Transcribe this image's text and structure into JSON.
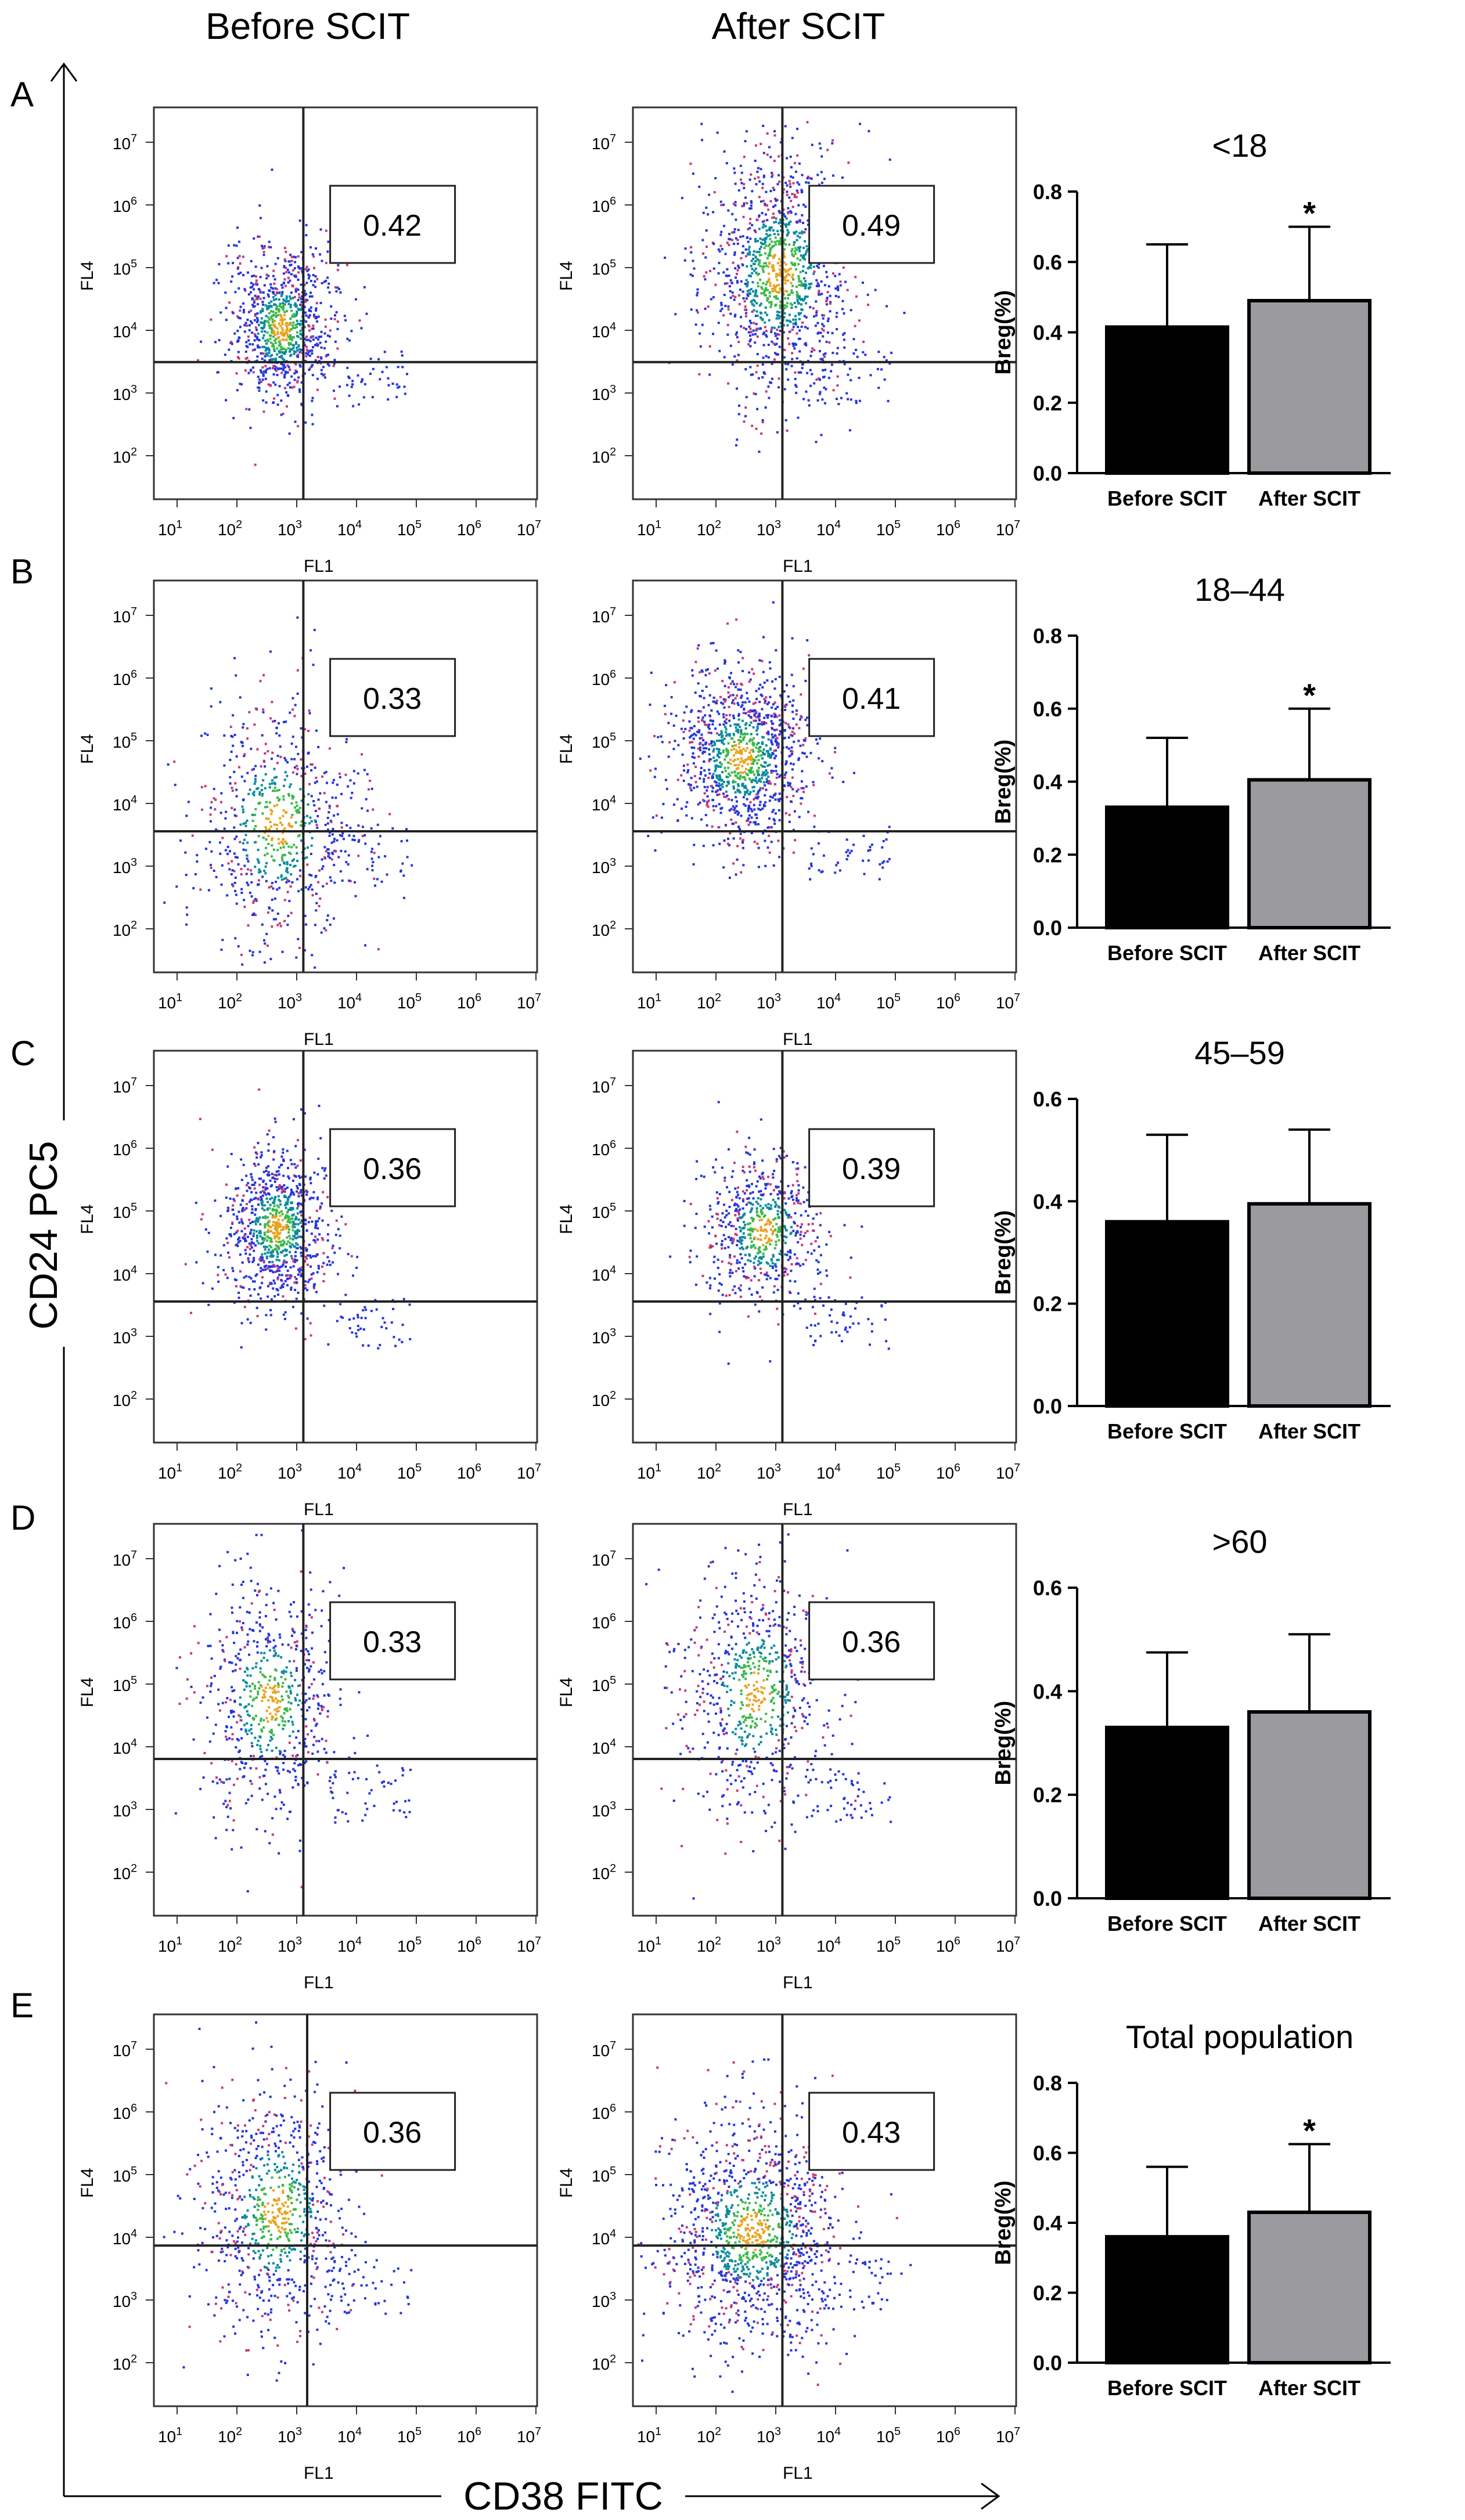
{
  "headers": {
    "before": "Before SCIT",
    "after": "After SCIT"
  },
  "axis_titles": {
    "y": "CD24 PC5",
    "x": "CD38 FITC"
  },
  "flow_axis": {
    "x_name": "FL1",
    "y_name": "FL4",
    "x_ticks": [
      "1",
      "2",
      "3",
      "4",
      "5",
      "6",
      "7"
    ],
    "y_ticks": [
      "7",
      "6",
      "5",
      "4",
      "3",
      "2"
    ],
    "tick_base": "10"
  },
  "rows": [
    {
      "label": "A",
      "before_value": "0.42",
      "after_value": "0.49"
    },
    {
      "label": "B",
      "before_value": "0.33",
      "after_value": "0.41"
    },
    {
      "label": "C",
      "before_value": "0.36",
      "after_value": "0.39"
    },
    {
      "label": "D",
      "before_value": "0.33",
      "after_value": "0.36"
    },
    {
      "label": "E",
      "before_value": "0.36",
      "after_value": "0.43"
    }
  ],
  "chart_data": [
    {
      "type": "bar",
      "title": "<18",
      "ylabel": "Breg(%)",
      "categories": [
        "Before SCIT",
        "After SCIT"
      ],
      "values": [
        0.415,
        0.49
      ],
      "errors": [
        0.235,
        0.21
      ],
      "ylim": [
        0,
        0.8
      ],
      "yticks": [
        "0.0",
        "0.2",
        "0.4",
        "0.6",
        "0.8"
      ],
      "significance": [
        "",
        "*"
      ],
      "colors": [
        "#000000",
        "#9b9b9f"
      ]
    },
    {
      "type": "bar",
      "title": "18–44",
      "ylabel": "Breg(%)",
      "categories": [
        "Before SCIT",
        "After SCIT"
      ],
      "values": [
        0.33,
        0.405
      ],
      "errors": [
        0.19,
        0.195
      ],
      "ylim": [
        0,
        0.8
      ],
      "yticks": [
        "0.0",
        "0.2",
        "0.4",
        "0.6",
        "0.8"
      ],
      "significance": [
        "",
        "*"
      ],
      "colors": [
        "#000000",
        "#9b9b9f"
      ]
    },
    {
      "type": "bar",
      "title": "45–59",
      "ylabel": "Breg(%)",
      "categories": [
        "Before SCIT",
        "After SCIT"
      ],
      "values": [
        0.36,
        0.395
      ],
      "errors": [
        0.17,
        0.145
      ],
      "ylim": [
        0,
        0.6
      ],
      "yticks": [
        "0.0",
        "0.2",
        "0.4",
        "0.6"
      ],
      "significance": [
        "",
        ""
      ],
      "colors": [
        "#000000",
        "#9b9b9f"
      ]
    },
    {
      "type": "bar",
      "title": ">60",
      "ylabel": "Breg(%)",
      "categories": [
        "Before SCIT",
        "After SCIT"
      ],
      "values": [
        0.33,
        0.36
      ],
      "errors": [
        0.145,
        0.15
      ],
      "ylim": [
        0,
        0.6
      ],
      "yticks": [
        "0.0",
        "0.2",
        "0.4",
        "0.6"
      ],
      "significance": [
        "",
        ""
      ],
      "colors": [
        "#000000",
        "#9b9b9f"
      ]
    },
    {
      "type": "bar",
      "title": "Total population",
      "ylabel": "Breg(%)",
      "categories": [
        "Before SCIT",
        "After SCIT"
      ],
      "values": [
        0.36,
        0.43
      ],
      "errors": [
        0.2,
        0.195
      ],
      "ylim": [
        0,
        0.8
      ],
      "yticks": [
        "0.0",
        "0.2",
        "0.4",
        "0.6",
        "0.8"
      ],
      "significance": [
        "",
        "*"
      ],
      "colors": [
        "#000000",
        "#9b9b9f"
      ]
    }
  ]
}
